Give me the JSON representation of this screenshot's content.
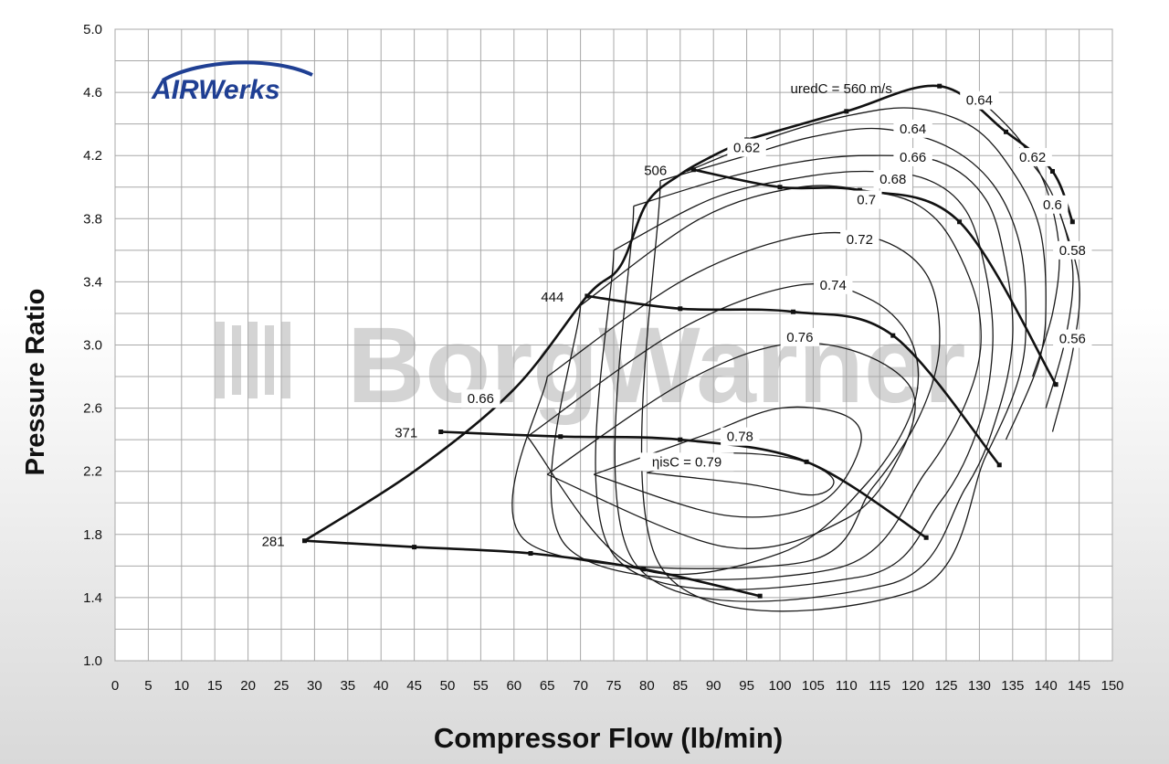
{
  "chart_data": {
    "type": "line",
    "xlabel": "Compressor Flow (lb/min)",
    "ylabel": "Pressure Ratio",
    "xlim": [
      0,
      150
    ],
    "ylim": [
      1.0,
      5.0
    ],
    "x_ticks": [
      "0",
      "5",
      "10",
      "15",
      "20",
      "25",
      "30",
      "35",
      "40",
      "45",
      "50",
      "55",
      "60",
      "65",
      "70",
      "75",
      "80",
      "85",
      "90",
      "95",
      "100",
      "105",
      "110",
      "115",
      "120",
      "125",
      "130",
      "135",
      "140",
      "145",
      "150"
    ],
    "y_ticks": [
      "1.0",
      "1.4",
      "1.8",
      "2.2",
      "2.6",
      "3.0",
      "3.4",
      "3.8",
      "4.2",
      "4.6",
      "5.0"
    ],
    "grid": true,
    "logo": "AIRWerks",
    "watermark": "BorgWarner",
    "speed_lines": [
      {
        "name": "281",
        "points": [
          [
            28.5,
            1.76
          ],
          [
            45,
            1.72
          ],
          [
            62.5,
            1.68
          ],
          [
            79.5,
            1.58
          ],
          [
            97,
            1.41
          ]
        ]
      },
      {
        "name": "371",
        "points": [
          [
            49,
            2.45
          ],
          [
            67,
            2.42
          ],
          [
            85,
            2.4
          ],
          [
            104,
            2.26
          ],
          [
            122,
            1.78
          ]
        ]
      },
      {
        "name": "444",
        "points": [
          [
            71,
            3.31
          ],
          [
            85,
            3.23
          ],
          [
            102,
            3.21
          ],
          [
            117,
            3.06
          ],
          [
            133,
            2.24
          ]
        ]
      },
      {
        "name": "506",
        "points": [
          [
            87,
            4.11
          ],
          [
            100,
            4.0
          ],
          [
            112,
            3.98
          ],
          [
            127,
            3.78
          ],
          [
            141.5,
            2.75
          ]
        ]
      },
      {
        "name": "uredC = 560 m/s",
        "points": [
          [
            95,
            4.3
          ],
          [
            110,
            4.48
          ],
          [
            124,
            4.64
          ],
          [
            134,
            4.35
          ],
          [
            141,
            4.1
          ],
          [
            144,
            3.78
          ]
        ]
      }
    ],
    "surge_line": [
      [
        28.5,
        1.76
      ],
      [
        45,
        2.2
      ],
      [
        60,
        2.72
      ],
      [
        71,
        3.31
      ],
      [
        76,
        3.5
      ],
      [
        80,
        3.9
      ],
      [
        85,
        4.08
      ],
      [
        90,
        4.2
      ],
      [
        95,
        4.3
      ]
    ],
    "efficiency_islands": [
      {
        "label": "ηisC = 0.79",
        "points": [
          [
            80,
            2.19
          ],
          [
            95,
            2.12
          ],
          [
            105,
            2.05
          ],
          [
            108,
            2.15
          ],
          [
            102,
            2.28
          ],
          [
            90,
            2.31
          ],
          [
            80,
            2.19
          ]
        ]
      },
      {
        "label": "0.78",
        "points": [
          [
            72,
            2.18
          ],
          [
            88,
            2.42
          ],
          [
            100,
            2.6
          ],
          [
            110,
            2.55
          ],
          [
            112,
            2.35
          ],
          [
            106,
            2.0
          ],
          [
            92,
            1.92
          ],
          [
            72,
            2.18
          ]
        ]
      },
      {
        "label": "0.76",
        "points": [
          [
            65,
            2.18
          ],
          [
            85,
            2.75
          ],
          [
            100,
            3.0
          ],
          [
            112,
            2.95
          ],
          [
            120,
            2.7
          ],
          [
            118,
            2.3
          ],
          [
            110,
            1.9
          ],
          [
            92,
            1.72
          ],
          [
            65,
            2.18
          ]
        ]
      },
      {
        "label": "0.74",
        "points": [
          [
            62,
            2.42
          ],
          [
            85,
            3.1
          ],
          [
            103,
            3.38
          ],
          [
            114,
            3.28
          ],
          [
            120,
            3.0
          ],
          [
            120,
            2.6
          ],
          [
            113,
            2.12
          ],
          [
            100,
            1.68
          ],
          [
            78,
            1.6
          ],
          [
            62,
            2.42
          ]
        ]
      },
      {
        "label": "0.72",
        "points": [
          [
            65,
            2.8
          ],
          [
            85,
            3.4
          ],
          [
            102,
            3.68
          ],
          [
            114,
            3.68
          ],
          [
            122,
            3.45
          ],
          [
            124,
            3.0
          ],
          [
            121,
            2.55
          ],
          [
            114,
            2.1
          ],
          [
            103,
            1.62
          ],
          [
            62,
            1.75
          ],
          [
            65,
            2.8
          ]
        ]
      },
      {
        "label": "0.7",
        "points": [
          [
            70,
            3.25
          ],
          [
            88,
            3.8
          ],
          [
            103,
            4.0
          ],
          [
            114,
            3.97
          ],
          [
            121,
            3.88
          ],
          [
            126,
            3.65
          ],
          [
            130,
            3.2
          ],
          [
            129,
            2.75
          ],
          [
            122,
            2.2
          ],
          [
            108,
            1.58
          ],
          [
            68,
            1.72
          ],
          [
            70,
            3.25
          ]
        ]
      },
      {
        "label": "0.68",
        "points": [
          [
            75,
            3.6
          ],
          [
            90,
            3.93
          ],
          [
            103,
            4.06
          ],
          [
            113,
            4.1
          ],
          [
            122,
            4.05
          ],
          [
            128,
            3.85
          ],
          [
            131,
            3.45
          ],
          [
            132,
            3.0
          ],
          [
            130,
            2.5
          ],
          [
            124,
            2.0
          ],
          [
            112,
            1.53
          ],
          [
            75,
            1.67
          ],
          [
            75,
            3.6
          ]
        ]
      },
      {
        "label": "0.66",
        "points": [
          [
            78,
            3.88
          ],
          [
            92,
            4.06
          ],
          [
            103,
            4.16
          ],
          [
            113,
            4.2
          ],
          [
            124,
            4.16
          ],
          [
            131,
            3.92
          ],
          [
            134,
            3.5
          ],
          [
            135,
            3.05
          ],
          [
            133,
            2.6
          ],
          [
            128,
            2.1
          ],
          [
            116,
            1.48
          ],
          [
            78,
            1.63
          ],
          [
            78,
            3.88
          ]
        ]
      },
      {
        "label": "0.64",
        "points": [
          [
            82,
            4.04
          ],
          [
            95,
            4.2
          ],
          [
            105,
            4.32
          ],
          [
            115,
            4.37
          ],
          [
            125,
            4.26
          ],
          [
            132,
            4.02
          ],
          [
            136,
            3.65
          ],
          [
            137,
            3.2
          ],
          [
            136,
            2.8
          ],
          [
            131,
            2.3
          ],
          [
            120,
            1.44
          ],
          [
            82,
            1.6
          ],
          [
            82,
            4.04
          ]
        ]
      },
      {
        "label": "0.62",
        "points": [
          [
            86,
            4.1
          ],
          [
            99,
            4.32
          ],
          [
            110,
            4.45
          ],
          [
            120,
            4.5
          ],
          [
            129,
            4.38
          ],
          [
            135,
            4.1
          ],
          [
            139,
            3.75
          ],
          [
            140,
            3.3
          ],
          [
            139,
            2.9
          ],
          [
            134,
            2.4
          ]
        ]
      },
      {
        "label": "0.6",
        "points": [
          [
            131,
            4.52
          ],
          [
            136,
            4.3
          ],
          [
            140,
            4.0
          ],
          [
            142,
            3.6
          ],
          [
            141,
            3.2
          ],
          [
            138,
            2.8
          ]
        ]
      },
      {
        "label": "0.58",
        "points": [
          [
            136,
            4.25
          ],
          [
            141,
            3.95
          ],
          [
            144,
            3.5
          ],
          [
            143,
            3.05
          ],
          [
            140,
            2.6
          ]
        ]
      },
      {
        "label": "0.56",
        "points": [
          [
            142,
            3.85
          ],
          [
            145,
            3.4
          ],
          [
            144,
            2.95
          ],
          [
            141,
            2.45
          ]
        ]
      }
    ],
    "island_labels": [
      {
        "label": "0.64",
        "x": 130,
        "y": 4.55
      },
      {
        "label": "0.64",
        "x": 120,
        "y": 4.37
      },
      {
        "label": "0.62",
        "x": 95,
        "y": 4.25
      },
      {
        "label": "0.62",
        "x": 138,
        "y": 4.19
      },
      {
        "label": "0.66",
        "x": 120,
        "y": 4.19
      },
      {
        "label": "0.68",
        "x": 117,
        "y": 4.05
      },
      {
        "label": "0.7",
        "x": 113,
        "y": 3.92
      },
      {
        "label": "0.6",
        "x": 141,
        "y": 3.89
      },
      {
        "label": "0.72",
        "x": 112,
        "y": 3.67
      },
      {
        "label": "0.58",
        "x": 144,
        "y": 3.6
      },
      {
        "label": "0.74",
        "x": 108,
        "y": 3.38
      },
      {
        "label": "0.56",
        "x": 144,
        "y": 3.04
      },
      {
        "label": "0.76",
        "x": 103,
        "y": 3.05
      },
      {
        "label": "0.66",
        "x": 55,
        "y": 2.66
      },
      {
        "label": "0.78",
        "x": 94,
        "y": 2.42
      },
      {
        "label": "ηisC = 0.79",
        "x": 86,
        "y": 2.26
      }
    ],
    "speed_labels": [
      {
        "label": "281",
        "x": 25.5,
        "y": 1.76
      },
      {
        "label": "371",
        "x": 45.5,
        "y": 2.45
      },
      {
        "label": "444",
        "x": 67.5,
        "y": 3.31
      },
      {
        "label": "506",
        "x": 83,
        "y": 4.11
      },
      {
        "label": "uredC = 560 m/s",
        "x": 102,
        "y": 4.63
      }
    ]
  }
}
